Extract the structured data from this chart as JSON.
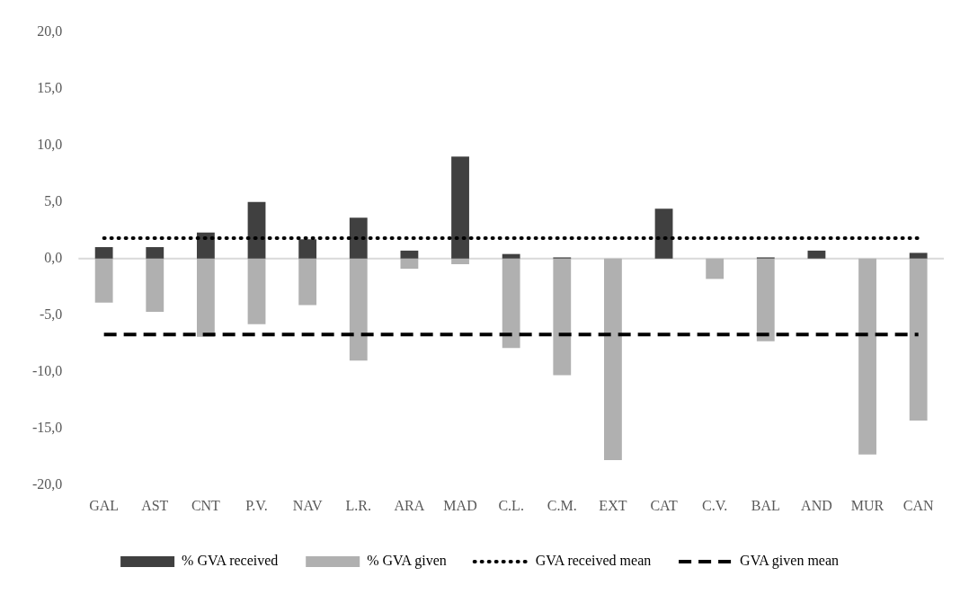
{
  "chart_data": {
    "type": "bar",
    "stacked": true,
    "categories": [
      "GAL",
      "AST",
      "CNT",
      "P.V.",
      "NAV",
      "L.R.",
      "ARA",
      "MAD",
      "C.L.",
      "C.M.",
      "EXT",
      "CAT",
      "C.V.",
      "BAL",
      "AND",
      "MUR",
      "CAN"
    ],
    "series": [
      {
        "name": "% GVA received",
        "color": "#404040",
        "values": [
          1.0,
          1.0,
          2.3,
          5.0,
          1.7,
          3.6,
          0.7,
          9.0,
          0.4,
          0.1,
          0,
          4.4,
          0,
          0.1,
          0.7,
          0,
          0.5
        ]
      },
      {
        "name": "% GVA given",
        "color": "#b0b0b0",
        "values": [
          -3.9,
          -4.7,
          -6.9,
          -5.8,
          -4.1,
          -9.0,
          -0.9,
          -0.5,
          -7.9,
          -10.3,
          -17.8,
          0,
          -1.8,
          -7.3,
          0,
          -17.3,
          -14.3
        ]
      },
      {
        "name": "GVA received mean",
        "type": "line",
        "line_style": "dotted",
        "color": "#000000",
        "values": [
          1.8,
          1.8,
          1.8,
          1.8,
          1.8,
          1.8,
          1.8,
          1.8,
          1.8,
          1.8,
          1.8,
          1.8,
          1.8,
          1.8,
          1.8,
          1.8,
          1.8
        ]
      },
      {
        "name": "GVA given mean",
        "type": "line",
        "line_style": "dashed",
        "color": "#000000",
        "values": [
          -6.7,
          -6.7,
          -6.7,
          -6.7,
          -6.7,
          -6.7,
          -6.7,
          -6.7,
          -6.7,
          -6.7,
          -6.7,
          -6.7,
          -6.7,
          -6.7,
          -6.7,
          -6.7,
          -6.7
        ]
      }
    ],
    "ylim": [
      -20,
      20
    ],
    "yticks": [
      {
        "value": -20,
        "label": "-20,0"
      },
      {
        "value": -15,
        "label": "-15,0"
      },
      {
        "value": -10,
        "label": "-10,0"
      },
      {
        "value": -5,
        "label": "-5,0"
      },
      {
        "value": 0,
        "label": "0,0"
      },
      {
        "value": 5,
        "label": "5,0"
      },
      {
        "value": 10,
        "label": "10,0"
      },
      {
        "value": 15,
        "label": "15,0"
      },
      {
        "value": 20,
        "label": "20,0"
      }
    ],
    "ref_lines": [
      {
        "axis": "y",
        "value": 0,
        "color": "#d9d9d9"
      }
    ],
    "grid": false,
    "legend": "bottom",
    "marker": "none"
  }
}
